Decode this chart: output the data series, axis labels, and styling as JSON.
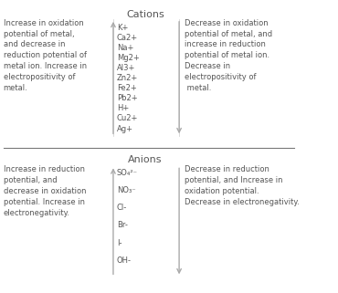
{
  "title_cations": "Cations",
  "title_anions": "Anions",
  "cations_list": [
    "K+",
    "Ca2+",
    "Na+",
    "Mg2+",
    "Al3+",
    "Zn2+",
    "Fe2+",
    "Pb2+",
    "H+",
    "Cu2+",
    "Ag+"
  ],
  "anions_list": [
    "SO₄²⁻",
    "NO₃⁻",
    "Cl-",
    "Br-",
    "I-",
    "OH-"
  ],
  "left_text_cations": "Increase in oxidation\npotential of metal,\nand decrease in\nreduction potential of\nmetal ion. Increase in\nelectropositivity of\nmetal.",
  "right_text_cations": "Decrease in oxidation\npotential of metal, and\nincrease in reduction\npotential of metal ion.\nDecrease in\nelectropositivity of\n metal.",
  "left_text_anions": "Increase in reduction\npotential, and\ndecrease in oxidation\npotential. Increase in\nelectronegativity.",
  "right_text_anions": "Decrease in reduction\npotential, and Increase in\noxidation potential.\nDecrease in electronegativity.",
  "bg_color": "#ffffff",
  "text_color": "#555555",
  "arrow_color": "#aaaaaa",
  "line_color": "#777777",
  "font_size": 6.0,
  "title_font_size": 8.0
}
